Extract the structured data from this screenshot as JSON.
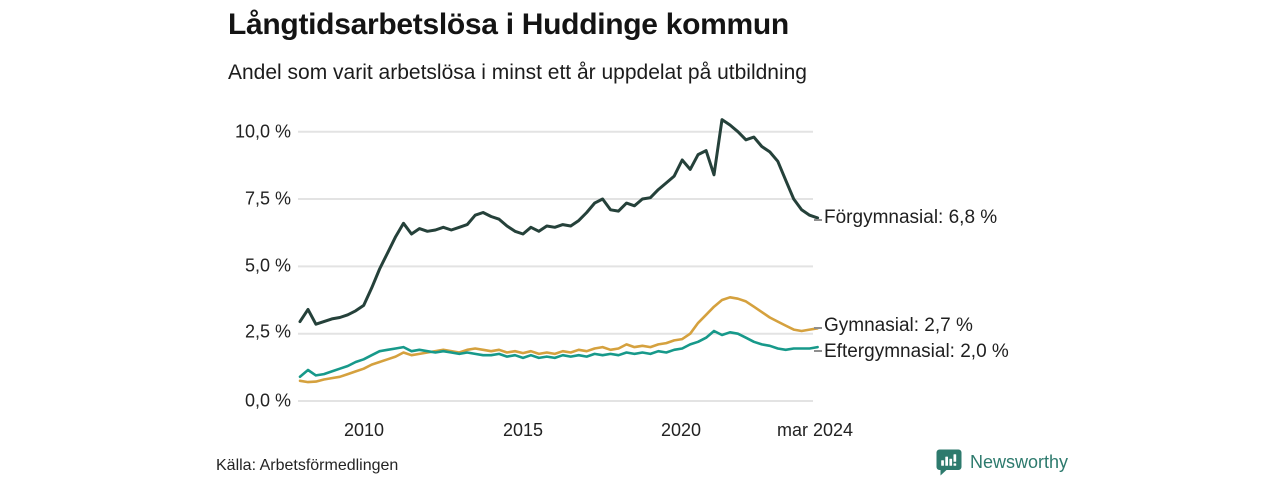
{
  "header": {
    "title": "Långtidsarbetslösa i Huddinge kommun",
    "subtitle": "Andel som varit arbetslösa i minst ett år uppdelat på utbildning"
  },
  "footer": {
    "source": "Källa: Arbetsförmedlingen",
    "brand": "Newsworthy",
    "brand_color": "#2d7a6d"
  },
  "chart_data": {
    "type": "line",
    "title": "Långtidsarbetslösa i Huddinge kommun",
    "subtitle": "Andel som varit arbetslösa i minst ett år uppdelat på utbildning",
    "unit": "%",
    "x_start": 2008.0,
    "x_step": 0.25,
    "ylim": [
      0,
      10.5
    ],
    "grid": "horizontal",
    "legend_position": "right-end-labels",
    "yticks": [
      {
        "value": 10.0,
        "label": "10,0 %"
      },
      {
        "value": 7.5,
        "label": "7,5 %"
      },
      {
        "value": 5.0,
        "label": "5,0 %"
      },
      {
        "value": 2.5,
        "label": "2,5 %"
      },
      {
        "value": 0.0,
        "label": "0,0 %"
      }
    ],
    "xticks": [
      {
        "value": 2010.0,
        "label": "2010"
      },
      {
        "value": 2015.0,
        "label": "2015"
      },
      {
        "value": 2020.0,
        "label": "2020"
      },
      {
        "value": 2024.17,
        "label": "mar 2024"
      }
    ],
    "series": [
      {
        "name": "Förgymnasial",
        "color": "#25413a",
        "end_value": 6.8,
        "end_label": "Förgymnasial: 6,8 %",
        "values": [
          2.95,
          3.4,
          2.85,
          2.95,
          3.05,
          3.1,
          3.2,
          3.35,
          3.55,
          4.2,
          4.9,
          5.5,
          6.1,
          6.6,
          6.2,
          6.4,
          6.3,
          6.35,
          6.45,
          6.35,
          6.45,
          6.55,
          6.9,
          7.0,
          6.85,
          6.75,
          6.5,
          6.3,
          6.2,
          6.45,
          6.3,
          6.5,
          6.45,
          6.55,
          6.5,
          6.7,
          7.0,
          7.35,
          7.5,
          7.1,
          7.05,
          7.35,
          7.25,
          7.5,
          7.55,
          7.85,
          8.1,
          8.35,
          8.95,
          8.6,
          9.15,
          9.3,
          8.4,
          10.45,
          10.25,
          10.0,
          9.7,
          9.8,
          9.45,
          9.25,
          8.9,
          8.2,
          7.5,
          7.1,
          6.9,
          6.8
        ]
      },
      {
        "name": "Gymnasial",
        "color": "#d5a13e",
        "end_value": 2.7,
        "end_label": "Gymnasial: 2,7 %",
        "values": [
          0.75,
          0.7,
          0.72,
          0.8,
          0.85,
          0.9,
          1.0,
          1.1,
          1.2,
          1.35,
          1.45,
          1.55,
          1.65,
          1.8,
          1.7,
          1.75,
          1.8,
          1.85,
          1.9,
          1.85,
          1.8,
          1.9,
          1.95,
          1.9,
          1.85,
          1.9,
          1.8,
          1.85,
          1.78,
          1.85,
          1.75,
          1.8,
          1.75,
          1.85,
          1.8,
          1.9,
          1.85,
          1.95,
          2.0,
          1.9,
          1.95,
          2.1,
          2.0,
          2.05,
          2.0,
          2.1,
          2.15,
          2.25,
          2.3,
          2.5,
          2.9,
          3.2,
          3.5,
          3.75,
          3.85,
          3.8,
          3.7,
          3.5,
          3.3,
          3.1,
          2.95,
          2.8,
          2.65,
          2.6,
          2.65,
          2.7
        ]
      },
      {
        "name": "Eftergymnasial",
        "color": "#17998a",
        "end_value": 2.0,
        "end_label": "Eftergymnasial: 2,0 %",
        "values": [
          0.9,
          1.15,
          0.95,
          1.0,
          1.1,
          1.2,
          1.3,
          1.45,
          1.55,
          1.7,
          1.85,
          1.9,
          1.95,
          2.0,
          1.85,
          1.9,
          1.85,
          1.8,
          1.85,
          1.8,
          1.75,
          1.8,
          1.75,
          1.7,
          1.7,
          1.75,
          1.65,
          1.7,
          1.6,
          1.7,
          1.6,
          1.65,
          1.6,
          1.7,
          1.65,
          1.7,
          1.65,
          1.75,
          1.7,
          1.75,
          1.7,
          1.8,
          1.75,
          1.8,
          1.75,
          1.85,
          1.8,
          1.9,
          1.95,
          2.1,
          2.2,
          2.35,
          2.6,
          2.45,
          2.55,
          2.5,
          2.35,
          2.2,
          2.1,
          2.05,
          1.95,
          1.9,
          1.95,
          1.95,
          1.95,
          2.0
        ]
      }
    ]
  }
}
